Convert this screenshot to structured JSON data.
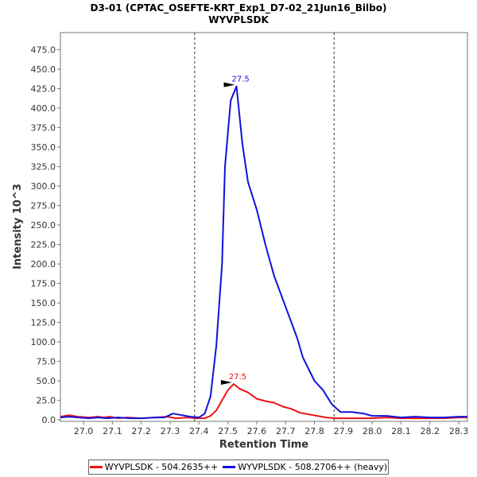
{
  "chart_data": {
    "type": "line",
    "title": "D3-01 (CPTAC_OSEFTE-KRT_Exp1_D7-02_21Jun16_Bilbo)",
    "subtitle": "WYVPLSDK",
    "xlabel": "Retention Time",
    "ylabel": "Intensity 10^3",
    "xlim": [
      26.92,
      28.33
    ],
    "ylim": [
      -2,
      497
    ],
    "x_ticks": [
      "27.0",
      "27.1",
      "27.2",
      "27.3",
      "27.4",
      "27.5",
      "27.6",
      "27.7",
      "27.8",
      "27.9",
      "28.0",
      "28.1",
      "28.2",
      "28.3"
    ],
    "y_ticks": [
      "0.0",
      "25.0",
      "50.0",
      "75.0",
      "100.0",
      "125.0",
      "150.0",
      "175.0",
      "200.0",
      "225.0",
      "250.0",
      "275.0",
      "300.0",
      "325.0",
      "350.0",
      "375.0",
      "400.0",
      "425.0",
      "450.0",
      "475.0"
    ],
    "boundaries": [
      27.385,
      27.868
    ],
    "legend_position": "bottom",
    "grid": false,
    "series": [
      {
        "name": "WYVPLSDK - 504.2635++",
        "color": "#ee1111",
        "peak_label": "27.5",
        "peak": [
          27.52,
          46
        ],
        "points": [
          [
            26.92,
            4
          ],
          [
            26.95,
            6
          ],
          [
            26.98,
            4
          ],
          [
            27.02,
            3
          ],
          [
            27.05,
            4
          ],
          [
            27.07,
            3
          ],
          [
            27.09,
            4
          ],
          [
            27.12,
            2
          ],
          [
            27.15,
            3
          ],
          [
            27.2,
            2
          ],
          [
            27.25,
            3
          ],
          [
            27.29,
            4
          ],
          [
            27.32,
            2
          ],
          [
            27.36,
            3
          ],
          [
            27.39,
            2
          ],
          [
            27.42,
            2
          ],
          [
            27.44,
            5
          ],
          [
            27.46,
            12
          ],
          [
            27.48,
            25
          ],
          [
            27.5,
            38
          ],
          [
            27.52,
            46
          ],
          [
            27.54,
            40
          ],
          [
            27.57,
            35
          ],
          [
            27.6,
            27
          ],
          [
            27.63,
            24
          ],
          [
            27.66,
            22
          ],
          [
            27.69,
            17
          ],
          [
            27.72,
            14
          ],
          [
            27.75,
            9
          ],
          [
            27.78,
            7
          ],
          [
            27.81,
            5
          ],
          [
            27.84,
            3
          ],
          [
            27.87,
            2
          ],
          [
            27.9,
            2
          ],
          [
            27.95,
            2
          ],
          [
            28.0,
            2
          ],
          [
            28.05,
            3
          ],
          [
            28.1,
            2
          ],
          [
            28.15,
            2
          ],
          [
            28.2,
            2
          ],
          [
            28.25,
            2
          ],
          [
            28.3,
            3
          ],
          [
            28.33,
            3
          ]
        ]
      },
      {
        "name": "WYVPLSDK - 508.2706++ (heavy)",
        "color": "#1111dd",
        "peak_label": "27.5",
        "peak": [
          27.53,
          428
        ],
        "points": [
          [
            26.92,
            3
          ],
          [
            26.95,
            4
          ],
          [
            26.98,
            3
          ],
          [
            27.02,
            2
          ],
          [
            27.05,
            3
          ],
          [
            27.08,
            2
          ],
          [
            27.12,
            3
          ],
          [
            27.16,
            2
          ],
          [
            27.2,
            2
          ],
          [
            27.25,
            3
          ],
          [
            27.28,
            3
          ],
          [
            27.31,
            8
          ],
          [
            27.34,
            6
          ],
          [
            27.37,
            4
          ],
          [
            27.4,
            3
          ],
          [
            27.42,
            8
          ],
          [
            27.44,
            30
          ],
          [
            27.46,
            95
          ],
          [
            27.48,
            200
          ],
          [
            27.49,
            325
          ],
          [
            27.51,
            410
          ],
          [
            27.53,
            428
          ],
          [
            27.55,
            355
          ],
          [
            27.57,
            305
          ],
          [
            27.6,
            270
          ],
          [
            27.63,
            225
          ],
          [
            27.66,
            185
          ],
          [
            27.69,
            155
          ],
          [
            27.72,
            125
          ],
          [
            27.74,
            105
          ],
          [
            27.76,
            80
          ],
          [
            27.8,
            50
          ],
          [
            27.83,
            38
          ],
          [
            27.86,
            20
          ],
          [
            27.89,
            10
          ],
          [
            27.93,
            10
          ],
          [
            27.97,
            8
          ],
          [
            28.0,
            5
          ],
          [
            28.05,
            5
          ],
          [
            28.1,
            3
          ],
          [
            28.15,
            4
          ],
          [
            28.2,
            3
          ],
          [
            28.25,
            3
          ],
          [
            28.3,
            4
          ],
          [
            28.33,
            4
          ]
        ]
      }
    ]
  }
}
